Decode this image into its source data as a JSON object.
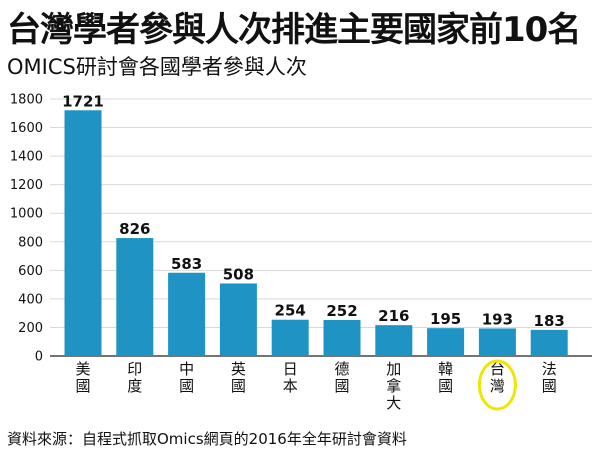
{
  "title": "台灣學者參與人次排進主要國家前10名",
  "subtitle": "OMICS研討會各國學者參與人次",
  "source": "資料來源：自程式抓取Omics網頁的2016年全年研討會資料",
  "colors": {
    "bar": "#1f93c4",
    "highlight": "#f2e600",
    "grid": "#d9d9d9",
    "text": "#111111"
  },
  "chart_data": {
    "type": "bar",
    "title": "台灣學者參與人次排進主要國家前10名",
    "subtitle": "OMICS研討會各國學者參與人次",
    "categories": [
      "美國",
      "印度",
      "中國",
      "英國",
      "日本",
      "德國",
      "加拿大",
      "韓國",
      "台灣",
      "法國"
    ],
    "values": [
      1721,
      826,
      583,
      508,
      254,
      252,
      216,
      195,
      193,
      183
    ],
    "yticks": [
      0,
      200,
      400,
      600,
      800,
      1000,
      1200,
      1400,
      1600,
      1800
    ],
    "ylim": [
      0,
      1800
    ],
    "grid": true,
    "highlighted_category": "台灣",
    "xlabel": "",
    "ylabel": ""
  }
}
